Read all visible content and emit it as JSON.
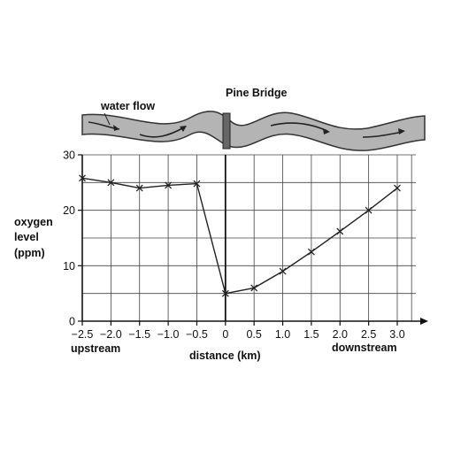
{
  "chart_data": {
    "type": "line",
    "title": "",
    "xlabel": "distance (km)",
    "ylabel_lines": [
      "oxygen",
      "level",
      "(ppm)"
    ],
    "x_ticks": [
      "−2.5",
      "−2.0",
      "−1.5",
      "−1.0",
      "−0.5",
      "0",
      "0.5",
      "1.0",
      "1.5",
      "2.0",
      "2.5",
      "3.0"
    ],
    "y_ticks": [
      "0",
      "10",
      "20",
      "30"
    ],
    "xlim": [
      -2.5,
      3.0
    ],
    "ylim": [
      0,
      30
    ],
    "grid": true,
    "x_end_labels": {
      "left": "upstream",
      "right": "downstream"
    },
    "series": [
      {
        "x": [
          -2.5,
          -2.0,
          -1.5,
          -1.0,
          -0.5,
          0,
          0.5,
          1.0,
          1.5,
          2.0,
          2.5,
          3.0
        ],
        "y": [
          25.8,
          25.0,
          24.0,
          24.5,
          24.8,
          5.0,
          6.0,
          9.0,
          12.5,
          16.2,
          20.0,
          24.0
        ],
        "marker": "x",
        "color": "#222222"
      }
    ],
    "annotations": {
      "water_flow": "water flow",
      "bridge": "Pine Bridge"
    }
  },
  "colors": {
    "river_fill": "#b4b4b4",
    "river_stroke": "#333333",
    "bridge": "#666666",
    "line": "#222222"
  }
}
